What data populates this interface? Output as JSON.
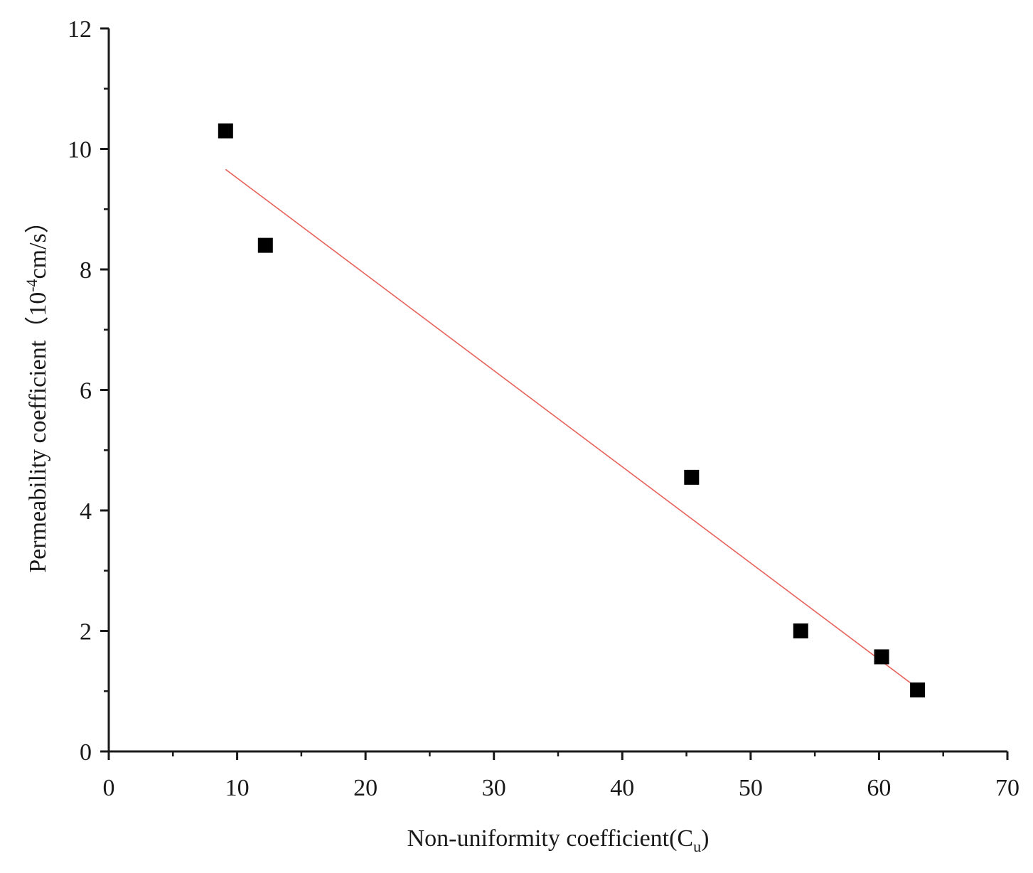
{
  "chart_data": {
    "type": "scatter",
    "title": "",
    "xlabel": {
      "main": "Non-uniformity coefficient(C",
      "sub": "u",
      "close": ")"
    },
    "ylabel": {
      "main": "Permeability coefficient（10",
      "sup": "-4",
      "rest": "cm/s）"
    },
    "xlim": [
      0,
      70
    ],
    "ylim": [
      0,
      12
    ],
    "x_ticks": [
      "0",
      "10",
      "20",
      "30",
      "40",
      "50",
      "60",
      "70"
    ],
    "y_ticks": [
      "0",
      "2",
      "4",
      "6",
      "8",
      "10",
      "12"
    ],
    "x_tick_values": [
      0,
      10,
      20,
      30,
      40,
      50,
      60,
      70
    ],
    "y_tick_values": [
      0,
      2,
      4,
      6,
      8,
      10,
      12
    ],
    "x_minor_step": 5,
    "y_minor_step": 1,
    "grid": false,
    "legend": "none",
    "series": [
      {
        "marker": "square",
        "color": "#000000",
        "points": [
          {
            "x": 9.1,
            "y": 10.3
          },
          {
            "x": 12.2,
            "y": 8.4
          },
          {
            "x": 45.4,
            "y": 4.55
          },
          {
            "x": 53.9,
            "y": 2.0
          },
          {
            "x": 60.2,
            "y": 1.57
          },
          {
            "x": 63.0,
            "y": 1.02
          }
        ]
      }
    ],
    "fit_line": {
      "color": "#e8625a",
      "from": {
        "x": 9.1,
        "y": 9.66
      },
      "to": {
        "x": 63.0,
        "y": 1.05
      }
    }
  }
}
